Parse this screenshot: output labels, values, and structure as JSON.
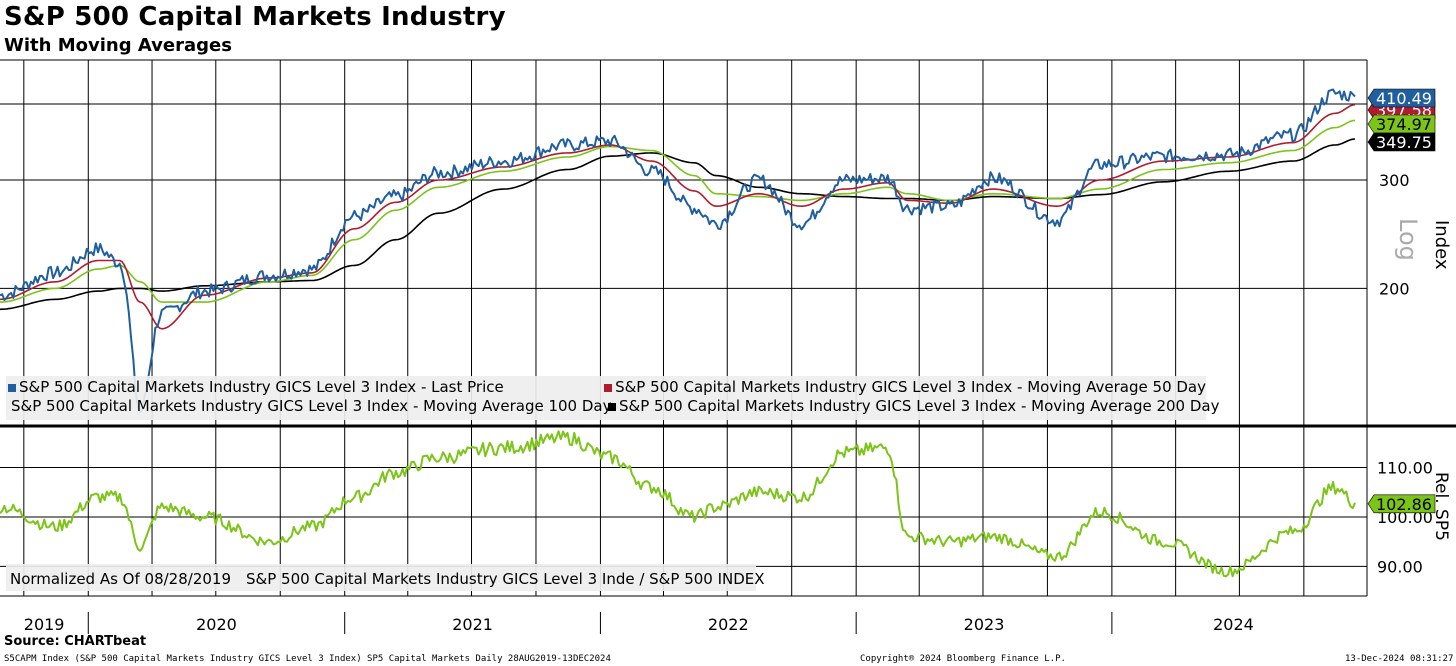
{
  "header": {
    "title": "S&P 500 Capital Markets Industry",
    "subtitle": "With Moving Averages"
  },
  "footer": {
    "source": "Source: CHARTbeat",
    "ticker_line": "S5CAPM Index (S&P 500 Capital Markets Industry GICS Level 3 Index) SP5 Capital Markets  Daily 28AUG2019-13DEC2024",
    "copyright": "Copyright® 2024 Bloomberg Finance L.P.",
    "timestamp": "13-Dec-2024 08:31:27"
  },
  "colors": {
    "last_price": "#1f5fa0",
    "ma50": "#b01c2e",
    "ma100": "#7cc418",
    "ma200": "#000000",
    "relative": "#7cc418"
  },
  "chart_data": [
    {
      "type": "line",
      "panel": "upper",
      "scale": "log",
      "axis_label": "Index",
      "scale_label": "Log",
      "yticks": [
        200,
        300
      ],
      "ylim": [
        120,
        470
      ],
      "x_years": [
        "2019",
        "2020",
        "2021",
        "2022",
        "2023",
        "2024"
      ],
      "x": [
        "2019-08",
        "2019-11",
        "2020-01",
        "2020-02",
        "2020-03",
        "2020-04",
        "2020-06",
        "2020-09",
        "2020-11",
        "2021-01",
        "2021-03",
        "2021-05",
        "2021-08",
        "2021-11",
        "2022-01",
        "2022-03",
        "2022-05",
        "2022-06",
        "2022-08",
        "2022-10",
        "2022-12",
        "2023-02",
        "2023-03",
        "2023-05",
        "2023-07",
        "2023-10",
        "2023-12",
        "2024-03",
        "2024-06",
        "2024-09",
        "2024-11",
        "2024-12"
      ],
      "series": [
        {
          "name": "S&P 500 Capital Markets Industry GICS Level 3 Index - Last Price",
          "current_label": "410.49",
          "values": [
            195,
            212,
            232,
            220,
            126,
            182,
            198,
            210,
            215,
            262,
            282,
            308,
            322,
            342,
            347,
            310,
            270,
            255,
            300,
            255,
            300,
            302,
            270,
            272,
            302,
            258,
            318,
            328,
            330,
            355,
            415,
            410
          ]
        },
        {
          "name": "S&P 500 Capital Markets Industry GICS Level 3 Index - Moving Average 50 Day",
          "current_label": "397.58",
          "values": [
            192,
            205,
            222,
            222,
            190,
            172,
            195,
            208,
            212,
            250,
            276,
            300,
            315,
            332,
            342,
            322,
            288,
            272,
            285,
            272,
            290,
            297,
            278,
            275,
            290,
            272,
            300,
            322,
            327,
            345,
            385,
            397.58
          ]
        },
        {
          "name": "S&P 500 Capital Markets Industry GICS Level 3 Index - Moving Average 100 Day",
          "current_label": "374.97",
          "values": [
            190,
            200,
            215,
            218,
            205,
            190,
            190,
            205,
            210,
            240,
            268,
            292,
            310,
            327,
            340,
            335,
            305,
            285,
            282,
            278,
            285,
            292,
            285,
            278,
            285,
            280,
            290,
            312,
            320,
            335,
            365,
            374.97
          ]
        },
        {
          "name": "S&P 500 Capital Markets Industry GICS Level 3 Index - Moving Average 200 Day",
          "current_label": "349.75",
          "values": [
            185,
            192,
            198,
            200,
            200,
            198,
            202,
            205,
            206,
            218,
            240,
            265,
            290,
            312,
            328,
            332,
            320,
            305,
            292,
            285,
            282,
            280,
            280,
            278,
            282,
            280,
            284,
            298,
            310,
            322,
            342,
            349.75
          ]
        }
      ],
      "legend": [
        "S&P 500 Capital Markets Industry GICS Level 3 Index - Last Price",
        "S&P 500 Capital Markets Industry GICS Level 3 Index - Moving Average 50 Day",
        "S&P 500 Capital Markets Industry GICS Level 3 Index - Moving Average 100 Day",
        "S&P 500 Capital Markets Industry GICS Level 3 Index - Moving Average 200 Day"
      ]
    },
    {
      "type": "line",
      "panel": "lower",
      "axis_label": "Rel. SP5",
      "yticks": [
        "90.00",
        "100.00",
        "110.00"
      ],
      "ylim": [
        84,
        118
      ],
      "x": [
        "2019-08",
        "2019-11",
        "2020-01",
        "2020-02",
        "2020-03",
        "2020-04",
        "2020-06",
        "2020-09",
        "2020-11",
        "2021-01",
        "2021-03",
        "2021-05",
        "2021-08",
        "2021-11",
        "2022-01",
        "2022-03",
        "2022-05",
        "2022-06",
        "2022-08",
        "2022-10",
        "2022-12",
        "2023-02",
        "2023-03",
        "2023-05",
        "2023-07",
        "2023-10",
        "2023-12",
        "2024-03",
        "2024-06",
        "2024-09",
        "2024-11",
        "2024-12"
      ],
      "series": [
        {
          "name": "S&P 500 Capital Markets Industry GICS Level 3 Inde / S&P 500 INDEX",
          "current_label": "102.86",
          "values": [
            102,
            98,
            104,
            104,
            94,
            102,
            100,
            95,
            98,
            104,
            109,
            112,
            114,
            116,
            112,
            106,
            100,
            102,
            105,
            104,
            113,
            114,
            96,
            95,
            96,
            92,
            101,
            95,
            89,
            97,
            106,
            102.86
          ]
        }
      ],
      "normalized_note": "Normalized As Of 08/28/2019",
      "legend": [
        "S&P 500 Capital Markets Industry GICS Level 3 Inde / S&P 500 INDEX"
      ]
    }
  ]
}
